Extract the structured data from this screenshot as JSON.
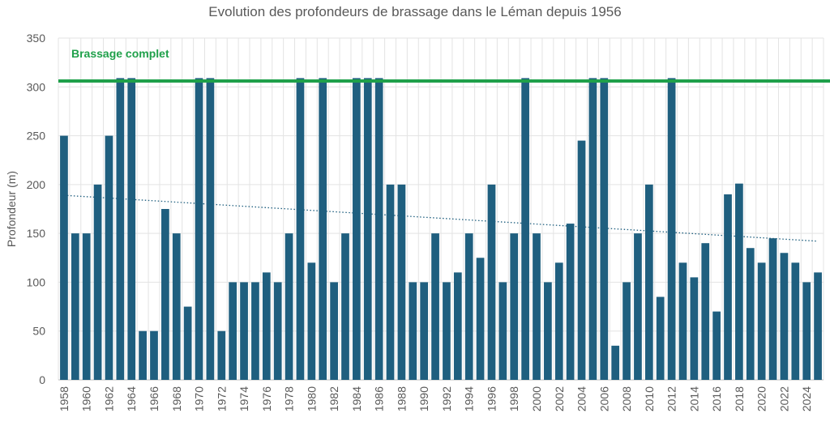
{
  "chart_data": {
    "type": "bar",
    "title": "Evolution des profondeurs de brassage dans le Léman depuis 1956",
    "xlabel": "",
    "ylabel": "Profondeur (m)",
    "ylim": [
      0,
      350
    ],
    "yticks": [
      0,
      50,
      100,
      150,
      200,
      250,
      300,
      350
    ],
    "grid": true,
    "bar_color": "#1f5f7f",
    "categories": [
      "1958",
      "1959",
      "1960",
      "1961",
      "1962",
      "1963",
      "1964",
      "1965",
      "1966",
      "1967",
      "1968",
      "1969",
      "1970",
      "1971",
      "1972",
      "1973",
      "1974",
      "1975",
      "1976",
      "1977",
      "1978",
      "1979",
      "1980",
      "1981",
      "1982",
      "1983",
      "1984",
      "1985",
      "1986",
      "1987",
      "1988",
      "1989",
      "1990",
      "1991",
      "1992",
      "1993",
      "1994",
      "1995",
      "1996",
      "1997",
      "1998",
      "1999",
      "2000",
      "2001",
      "2002",
      "2003",
      "2004",
      "2005",
      "2006",
      "2007",
      "2008",
      "2009",
      "2010",
      "2011",
      "2012",
      "2013",
      "2014",
      "2015",
      "2016",
      "2017",
      "2018",
      "2019",
      "2020",
      "2021",
      "2022",
      "2023",
      "2024",
      "2025"
    ],
    "tick_labels": [
      "1958",
      "1960",
      "1962",
      "1964",
      "1966",
      "1968",
      "1970",
      "1972",
      "1974",
      "1976",
      "1978",
      "1980",
      "1982",
      "1984",
      "1986",
      "1988",
      "1990",
      "1992",
      "1994",
      "1996",
      "1998",
      "2000",
      "2002",
      "2004",
      "2006",
      "2008",
      "2010",
      "2012",
      "2014",
      "2016",
      "2018",
      "2020",
      "2022",
      "2024"
    ],
    "values": [
      250,
      150,
      150,
      200,
      250,
      309,
      309,
      50,
      50,
      175,
      150,
      75,
      309,
      309,
      50,
      100,
      100,
      100,
      110,
      100,
      150,
      309,
      120,
      309,
      100,
      150,
      309,
      309,
      309,
      200,
      200,
      100,
      100,
      150,
      100,
      110,
      150,
      125,
      200,
      100,
      150,
      309,
      150,
      100,
      120,
      160,
      245,
      309,
      309,
      35,
      100,
      150,
      200,
      85,
      309,
      120,
      105,
      140,
      70,
      190,
      201,
      135,
      120,
      145,
      130,
      120,
      100,
      110
    ],
    "reference_line": {
      "label": "Brassage complet",
      "value": 306,
      "color": "#1fa04a"
    },
    "trendline": {
      "start": 189,
      "end": 142,
      "color": "#1f5f7f",
      "style": "dotted"
    }
  }
}
